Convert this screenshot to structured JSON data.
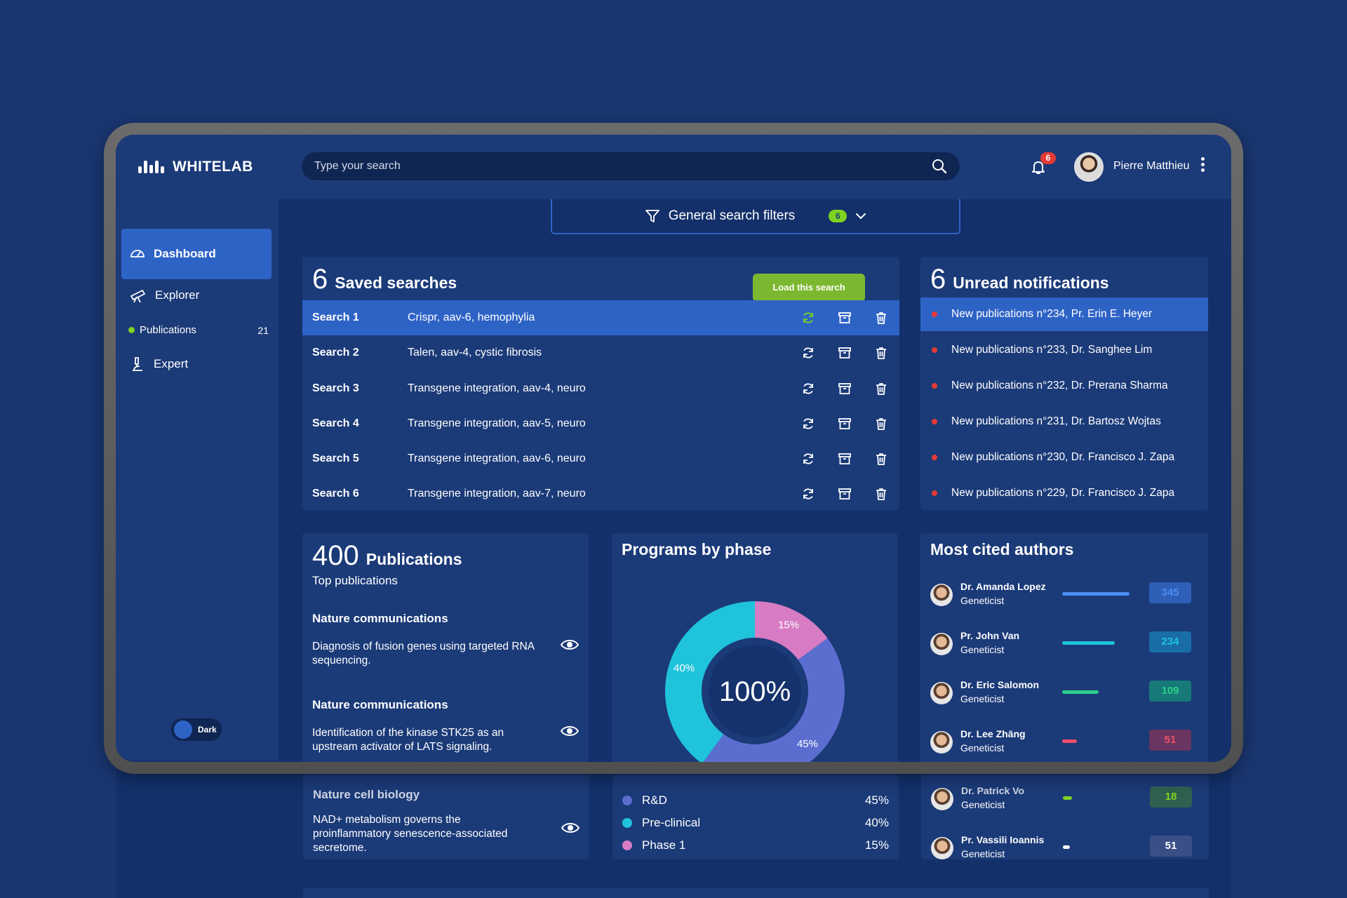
{
  "app": {
    "name": "WHITELAB"
  },
  "header": {
    "search_placeholder": "Type your search",
    "notifications_count": "6",
    "user_name": "Pierre Matthieu"
  },
  "sidebar": {
    "items": [
      {
        "label": "Dashboard",
        "icon": "dashboard-icon",
        "active": true
      },
      {
        "label": "Explorer",
        "icon": "telescope-icon"
      },
      {
        "label": "Expert",
        "icon": "microscope-icon"
      }
    ],
    "sub_item": {
      "label": "Publications",
      "count": "21"
    },
    "theme_toggle": {
      "label": "Dark"
    }
  },
  "filters": {
    "label": "General search filters",
    "count": "6"
  },
  "saved_searches": {
    "count": "6",
    "title": "Saved searches",
    "tooltip": "Load this search",
    "rows": [
      {
        "name": "Search 1",
        "terms": "Crispr, aav-6, hemophylia"
      },
      {
        "name": "Search 2",
        "terms": "Talen, aav-4, cystic fibrosis"
      },
      {
        "name": "Search 3",
        "terms": "Transgene integration, aav-4, neuro"
      },
      {
        "name": "Search 4",
        "terms": "Transgene integration, aav-5, neuro"
      },
      {
        "name": "Search 5",
        "terms": "Transgene integration, aav-6, neuro"
      },
      {
        "name": "Search 6",
        "terms": "Transgene integration, aav-7, neuro"
      }
    ]
  },
  "notifications": {
    "count": "6",
    "title": "Unread notifications",
    "items": [
      "New publications n°234, Pr. Erin E. Heyer",
      "New publications n°233, Dr. Sanghee Lim",
      "New publications n°232, Dr. Prerana Sharma",
      "New publications n°231, Dr. Bartosz Wojtas",
      "New publications n°230, Dr. Francisco J. Zapa",
      "New publications n°229, Dr. Francisco J. Zapa"
    ]
  },
  "publications": {
    "count": "400",
    "title": "Publications",
    "subtitle": "Top publications",
    "items": [
      {
        "journal": "Nature communications",
        "desc": "Diagnosis of fusion genes using targeted RNA sequencing."
      },
      {
        "journal": "Nature communications",
        "desc": "Identification of the kinase STK25 as an upstream activator of LATS signaling."
      },
      {
        "journal": "Nature cell biology",
        "desc": "NAD+ metabolism governs the proinflammatory senescence-associated secretome."
      }
    ]
  },
  "programs": {
    "title": "Programs by phase",
    "center_label": "100%",
    "slices": [
      {
        "label": "R&D",
        "value": 45,
        "display": "45%",
        "color": "#5b6ed0"
      },
      {
        "label": "Pre-clinical",
        "value": 40,
        "display": "40%",
        "color": "#1fc3dc"
      },
      {
        "label": "Phase 1",
        "value": 15,
        "display": "15%",
        "color": "#d77cc4"
      }
    ]
  },
  "authors": {
    "title": "Most cited authors",
    "items": [
      {
        "name": "Dr. Amanda Lopez",
        "role": "Geneticist",
        "count": "345",
        "color": "#4d8cf5",
        "badge_bg": "#2f5fb6",
        "ratio": 1.0
      },
      {
        "name": "Pr. John Van",
        "role": "Geneticist",
        "count": "234",
        "color": "#1fc3dc",
        "badge_bg": "#1a6ea8",
        "ratio": 0.78
      },
      {
        "name": "Dr. Eric Salomon",
        "role": "Geneticist",
        "count": "109",
        "color": "#2ad08c",
        "badge_bg": "#177a78",
        "ratio": 0.54
      },
      {
        "name": "Dr. Lee Zhāng",
        "role": "Geneticist",
        "count": "51",
        "color": "#f0506a",
        "badge_bg": "#6a3560",
        "ratio": 0.22
      },
      {
        "name": "Dr. Patrick Vo",
        "role": "Geneticist",
        "count": "18",
        "color": "#7ed321",
        "badge_bg": "#2f6050",
        "ratio": 0.14
      },
      {
        "name": "Pr. Vassili Ioannis",
        "role": "Geneticist",
        "count": "51",
        "color": "#ffffff",
        "badge_bg": "#3a4f86",
        "ratio": 0.09
      }
    ]
  }
}
